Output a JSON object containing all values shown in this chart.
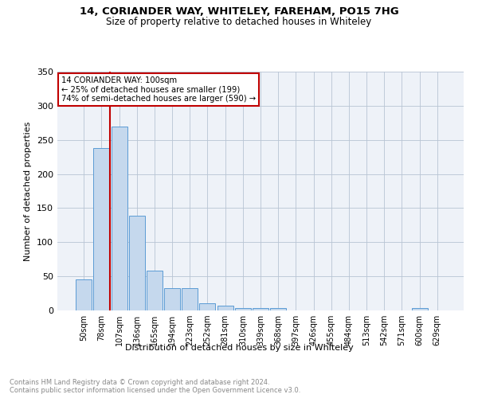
{
  "title1": "14, CORIANDER WAY, WHITELEY, FAREHAM, PO15 7HG",
  "title2": "Size of property relative to detached houses in Whiteley",
  "xlabel": "Distribution of detached houses by size in Whiteley",
  "ylabel": "Number of detached properties",
  "footnote1": "Contains HM Land Registry data © Crown copyright and database right 2024.",
  "footnote2": "Contains public sector information licensed under the Open Government Licence v3.0.",
  "bar_labels": [
    "50sqm",
    "78sqm",
    "107sqm",
    "136sqm",
    "165sqm",
    "194sqm",
    "223sqm",
    "252sqm",
    "281sqm",
    "310sqm",
    "339sqm",
    "368sqm",
    "397sqm",
    "426sqm",
    "455sqm",
    "484sqm",
    "513sqm",
    "542sqm",
    "571sqm",
    "600sqm",
    "629sqm"
  ],
  "bar_values": [
    46,
    238,
    269,
    139,
    58,
    33,
    33,
    10,
    7,
    3,
    4,
    4,
    0,
    0,
    0,
    0,
    0,
    0,
    0,
    3,
    0
  ],
  "bar_color": "#c5d8ed",
  "bar_edge_color": "#5b9bd5",
  "ylim": [
    0,
    350
  ],
  "yticks": [
    0,
    50,
    100,
    150,
    200,
    250,
    300,
    350
  ],
  "property_line_color": "#c00000",
  "annotation_text": "14 CORIANDER WAY: 100sqm\n← 25% of detached houses are smaller (199)\n74% of semi-detached houses are larger (590) →",
  "annotation_box_color": "#ffffff",
  "annotation_box_edge": "#c00000",
  "background_color": "#eef2f8"
}
